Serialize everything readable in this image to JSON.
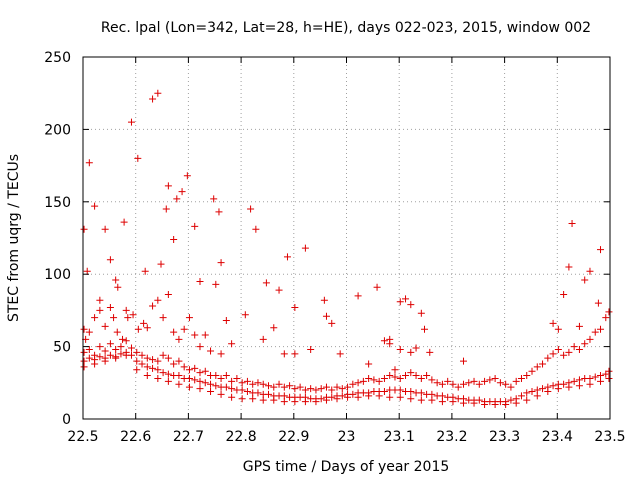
{
  "chart_data": {
    "type": "scatter",
    "title": "Rec. lpal (Lon=342, Lat=28, h=HE), days 022-023, 2015, window 002",
    "xlabel": "GPS time / Days of year 2015",
    "ylabel": "STEC from uqrg / TECUs",
    "xlim": [
      22.5,
      23.5
    ],
    "ylim": [
      0,
      250
    ],
    "xticks": [
      "22.5",
      "22.6",
      "22.7",
      "22.8",
      "22.9",
      "23",
      "23.1",
      "23.2",
      "23.3",
      "23.4",
      "23.5"
    ],
    "yticks": [
      "0",
      "50",
      "100",
      "150",
      "200",
      "250"
    ],
    "grid": true,
    "marker": "plus",
    "color": "#dd0000",
    "points": [
      [
        22.502,
        131
      ],
      [
        22.508,
        102
      ],
      [
        22.512,
        177
      ],
      [
        22.522,
        147
      ],
      [
        22.532,
        82
      ],
      [
        22.542,
        131
      ],
      [
        22.552,
        110
      ],
      [
        22.562,
        96
      ],
      [
        22.566,
        91
      ],
      [
        22.578,
        136
      ],
      [
        22.582,
        75
      ],
      [
        22.592,
        205
      ],
      [
        22.604,
        180
      ],
      [
        22.618,
        102
      ],
      [
        22.632,
        221
      ],
      [
        22.642,
        225
      ],
      [
        22.648,
        107
      ],
      [
        22.658,
        145
      ],
      [
        22.662,
        161
      ],
      [
        22.672,
        124
      ],
      [
        22.678,
        152
      ],
      [
        22.688,
        157
      ],
      [
        22.698,
        168
      ],
      [
        22.712,
        133
      ],
      [
        22.722,
        95
      ],
      [
        22.748,
        152
      ],
      [
        22.752,
        93
      ],
      [
        22.758,
        143
      ],
      [
        22.762,
        108
      ],
      [
        22.772,
        68
      ],
      [
        22.808,
        72
      ],
      [
        22.818,
        145
      ],
      [
        22.828,
        131
      ],
      [
        22.848,
        94
      ],
      [
        22.872,
        89
      ],
      [
        22.888,
        112
      ],
      [
        22.902,
        77
      ],
      [
        22.922,
        118
      ],
      [
        22.958,
        82
      ],
      [
        22.962,
        71
      ],
      [
        22.972,
        66
      ],
      [
        22.988,
        45
      ],
      [
        23.022,
        85
      ],
      [
        23.042,
        38
      ],
      [
        23.058,
        91
      ],
      [
        23.072,
        54
      ],
      [
        23.082,
        55
      ],
      [
        23.092,
        34
      ],
      [
        23.102,
        81
      ],
      [
        23.112,
        83
      ],
      [
        23.122,
        79
      ],
      [
        23.132,
        49
      ],
      [
        23.142,
        73
      ],
      [
        23.148,
        62
      ],
      [
        23.158,
        46
      ],
      [
        23.222,
        40
      ],
      [
        23.392,
        66
      ],
      [
        23.402,
        62
      ],
      [
        23.412,
        86
      ],
      [
        23.422,
        105
      ],
      [
        23.428,
        135
      ],
      [
        23.442,
        64
      ],
      [
        23.452,
        96
      ],
      [
        23.462,
        102
      ],
      [
        23.478,
        80
      ],
      [
        23.482,
        117
      ],
      [
        22.502,
        62
      ],
      [
        22.505,
        55
      ],
      [
        22.512,
        60
      ],
      [
        22.522,
        70
      ],
      [
        22.532,
        75
      ],
      [
        22.542,
        64
      ],
      [
        22.552,
        77
      ],
      [
        22.558,
        70
      ],
      [
        22.565,
        60
      ],
      [
        22.575,
        55
      ],
      [
        22.585,
        70
      ],
      [
        22.595,
        72
      ],
      [
        22.605,
        62
      ],
      [
        22.615,
        66
      ],
      [
        22.622,
        63
      ],
      [
        22.632,
        78
      ],
      [
        22.642,
        82
      ],
      [
        22.652,
        70
      ],
      [
        22.662,
        86
      ],
      [
        22.672,
        60
      ],
      [
        22.682,
        55
      ],
      [
        22.692,
        62
      ],
      [
        22.702,
        70
      ],
      [
        22.712,
        58
      ],
      [
        22.722,
        50
      ],
      [
        22.732,
        58
      ],
      [
        22.742,
        47
      ],
      [
        22.762,
        45
      ],
      [
        22.782,
        52
      ],
      [
        22.842,
        55
      ],
      [
        22.862,
        63
      ],
      [
        22.882,
        45
      ],
      [
        22.902,
        45
      ],
      [
        22.932,
        48
      ],
      [
        23.082,
        52
      ],
      [
        23.102,
        48
      ],
      [
        23.122,
        46
      ],
      [
        22.502,
        46
      ],
      [
        22.512,
        48
      ],
      [
        22.522,
        44
      ],
      [
        22.532,
        50
      ],
      [
        22.542,
        47
      ],
      [
        22.552,
        52
      ],
      [
        22.562,
        48
      ],
      [
        22.572,
        50
      ],
      [
        22.582,
        54
      ],
      [
        22.592,
        49
      ],
      [
        22.602,
        46
      ],
      [
        22.612,
        44
      ],
      [
        22.622,
        42
      ],
      [
        22.632,
        41
      ],
      [
        22.642,
        40
      ],
      [
        22.652,
        44
      ],
      [
        22.662,
        42
      ],
      [
        22.672,
        38
      ],
      [
        22.682,
        40
      ],
      [
        22.692,
        36
      ],
      [
        22.702,
        34
      ],
      [
        22.712,
        35
      ],
      [
        22.722,
        32
      ],
      [
        22.732,
        33
      ],
      [
        22.742,
        30
      ],
      [
        22.752,
        30
      ],
      [
        22.762,
        28
      ],
      [
        22.772,
        30
      ],
      [
        22.782,
        26
      ],
      [
        22.792,
        28
      ],
      [
        22.802,
        25
      ],
      [
        22.812,
        26
      ],
      [
        22.822,
        24
      ],
      [
        22.832,
        25
      ],
      [
        22.842,
        24
      ],
      [
        22.852,
        23
      ],
      [
        22.862,
        22
      ],
      [
        22.872,
        24
      ],
      [
        22.882,
        22
      ],
      [
        22.892,
        23
      ],
      [
        22.902,
        21
      ],
      [
        22.912,
        22
      ],
      [
        22.922,
        20
      ],
      [
        22.932,
        21
      ],
      [
        22.942,
        20
      ],
      [
        22.952,
        21
      ],
      [
        22.962,
        22
      ],
      [
        22.972,
        20
      ],
      [
        22.982,
        22
      ],
      [
        22.992,
        21
      ],
      [
        23.002,
        22
      ],
      [
        23.012,
        24
      ],
      [
        23.022,
        25
      ],
      [
        23.032,
        26
      ],
      [
        23.042,
        28
      ],
      [
        23.052,
        27
      ],
      [
        23.062,
        26
      ],
      [
        23.072,
        28
      ],
      [
        23.082,
        30
      ],
      [
        23.092,
        29
      ],
      [
        23.102,
        28
      ],
      [
        23.112,
        30
      ],
      [
        23.122,
        32
      ],
      [
        23.132,
        30
      ],
      [
        23.142,
        28
      ],
      [
        23.152,
        30
      ],
      [
        23.162,
        27
      ],
      [
        23.172,
        25
      ],
      [
        23.182,
        24
      ],
      [
        23.192,
        26
      ],
      [
        23.202,
        24
      ],
      [
        23.212,
        22
      ],
      [
        23.222,
        24
      ],
      [
        23.232,
        25
      ],
      [
        23.242,
        26
      ],
      [
        23.252,
        24
      ],
      [
        23.262,
        26
      ],
      [
        23.272,
        27
      ],
      [
        23.282,
        28
      ],
      [
        23.292,
        25
      ],
      [
        23.302,
        24
      ],
      [
        23.312,
        22
      ],
      [
        23.322,
        26
      ],
      [
        23.332,
        28
      ],
      [
        23.342,
        30
      ],
      [
        23.352,
        33
      ],
      [
        23.362,
        36
      ],
      [
        23.372,
        38
      ],
      [
        23.382,
        42
      ],
      [
        23.392,
        45
      ],
      [
        23.402,
        48
      ],
      [
        23.412,
        44
      ],
      [
        23.422,
        46
      ],
      [
        23.432,
        50
      ],
      [
        23.442,
        48
      ],
      [
        23.452,
        52
      ],
      [
        23.462,
        55
      ],
      [
        23.472,
        60
      ],
      [
        23.482,
        62
      ],
      [
        23.492,
        70
      ],
      [
        23.498,
        74
      ],
      [
        22.502,
        40
      ],
      [
        22.512,
        42
      ],
      [
        22.522,
        41
      ],
      [
        22.532,
        43
      ],
      [
        22.542,
        42
      ],
      [
        22.552,
        44
      ],
      [
        22.562,
        43
      ],
      [
        22.572,
        45
      ],
      [
        22.582,
        46
      ],
      [
        22.592,
        44
      ],
      [
        22.602,
        40
      ],
      [
        22.612,
        38
      ],
      [
        22.622,
        36
      ],
      [
        22.632,
        35
      ],
      [
        22.642,
        34
      ],
      [
        22.652,
        32
      ],
      [
        22.662,
        31
      ],
      [
        22.672,
        30
      ],
      [
        22.682,
        30
      ],
      [
        22.692,
        28
      ],
      [
        22.702,
        28
      ],
      [
        22.712,
        27
      ],
      [
        22.722,
        26
      ],
      [
        22.732,
        25
      ],
      [
        22.742,
        24
      ],
      [
        22.752,
        23
      ],
      [
        22.762,
        22
      ],
      [
        22.772,
        22
      ],
      [
        22.782,
        21
      ],
      [
        22.792,
        20
      ],
      [
        22.802,
        20
      ],
      [
        22.812,
        19
      ],
      [
        22.822,
        18
      ],
      [
        22.832,
        18
      ],
      [
        22.842,
        17
      ],
      [
        22.852,
        17
      ],
      [
        22.862,
        16
      ],
      [
        22.872,
        16
      ],
      [
        22.882,
        16
      ],
      [
        22.892,
        15
      ],
      [
        22.902,
        15
      ],
      [
        22.912,
        15
      ],
      [
        22.922,
        15
      ],
      [
        22.932,
        14
      ],
      [
        22.942,
        14
      ],
      [
        22.952,
        14
      ],
      [
        22.962,
        15
      ],
      [
        22.972,
        15
      ],
      [
        22.982,
        16
      ],
      [
        22.992,
        16
      ],
      [
        23.002,
        17
      ],
      [
        23.012,
        17
      ],
      [
        23.022,
        18
      ],
      [
        23.032,
        18
      ],
      [
        23.042,
        18
      ],
      [
        23.052,
        19
      ],
      [
        23.062,
        19
      ],
      [
        23.072,
        19
      ],
      [
        23.082,
        20
      ],
      [
        23.092,
        20
      ],
      [
        23.102,
        20
      ],
      [
        23.112,
        19
      ],
      [
        23.122,
        19
      ],
      [
        23.132,
        18
      ],
      [
        23.142,
        18
      ],
      [
        23.152,
        17
      ],
      [
        23.162,
        17
      ],
      [
        23.172,
        16
      ],
      [
        23.182,
        16
      ],
      [
        23.192,
        15
      ],
      [
        23.202,
        15
      ],
      [
        23.212,
        14
      ],
      [
        23.222,
        14
      ],
      [
        23.232,
        13
      ],
      [
        23.242,
        13
      ],
      [
        23.252,
        13
      ],
      [
        23.262,
        12
      ],
      [
        23.272,
        12
      ],
      [
        23.282,
        12
      ],
      [
        23.292,
        12
      ],
      [
        23.302,
        12
      ],
      [
        23.312,
        13
      ],
      [
        23.322,
        14
      ],
      [
        23.332,
        16
      ],
      [
        23.342,
        18
      ],
      [
        23.352,
        19
      ],
      [
        23.362,
        20
      ],
      [
        23.372,
        21
      ],
      [
        23.382,
        22
      ],
      [
        23.392,
        23
      ],
      [
        23.402,
        24
      ],
      [
        23.412,
        24
      ],
      [
        23.422,
        25
      ],
      [
        23.432,
        26
      ],
      [
        23.442,
        27
      ],
      [
        23.452,
        28
      ],
      [
        23.462,
        28
      ],
      [
        23.472,
        29
      ],
      [
        23.482,
        30
      ],
      [
        23.492,
        31
      ],
      [
        23.498,
        33
      ],
      [
        22.502,
        36
      ],
      [
        22.522,
        38
      ],
      [
        22.542,
        40
      ],
      [
        22.562,
        42
      ],
      [
        22.582,
        44
      ],
      [
        22.602,
        34
      ],
      [
        22.622,
        30
      ],
      [
        22.642,
        28
      ],
      [
        22.662,
        26
      ],
      [
        22.682,
        24
      ],
      [
        22.702,
        22
      ],
      [
        22.722,
        21
      ],
      [
        22.742,
        19
      ],
      [
        22.762,
        17
      ],
      [
        22.782,
        15
      ],
      [
        22.802,
        14
      ],
      [
        22.822,
        14
      ],
      [
        22.842,
        13
      ],
      [
        22.862,
        13
      ],
      [
        22.882,
        12
      ],
      [
        22.902,
        12
      ],
      [
        22.922,
        12
      ],
      [
        22.942,
        12
      ],
      [
        22.962,
        13
      ],
      [
        22.982,
        14
      ],
      [
        23.002,
        15
      ],
      [
        23.022,
        15
      ],
      [
        23.042,
        16
      ],
      [
        23.062,
        16
      ],
      [
        23.082,
        15
      ],
      [
        23.102,
        15
      ],
      [
        23.122,
        14
      ],
      [
        23.142,
        13
      ],
      [
        23.162,
        13
      ],
      [
        23.182,
        12
      ],
      [
        23.202,
        12
      ],
      [
        23.222,
        11
      ],
      [
        23.242,
        11
      ],
      [
        23.262,
        10
      ],
      [
        23.282,
        10
      ],
      [
        23.302,
        10
      ],
      [
        23.322,
        11
      ],
      [
        23.342,
        13
      ],
      [
        23.362,
        16
      ],
      [
        23.382,
        19
      ],
      [
        23.402,
        21
      ],
      [
        23.422,
        22
      ],
      [
        23.442,
        23
      ],
      [
        23.462,
        24
      ],
      [
        23.482,
        26
      ],
      [
        23.498,
        28
      ]
    ]
  }
}
